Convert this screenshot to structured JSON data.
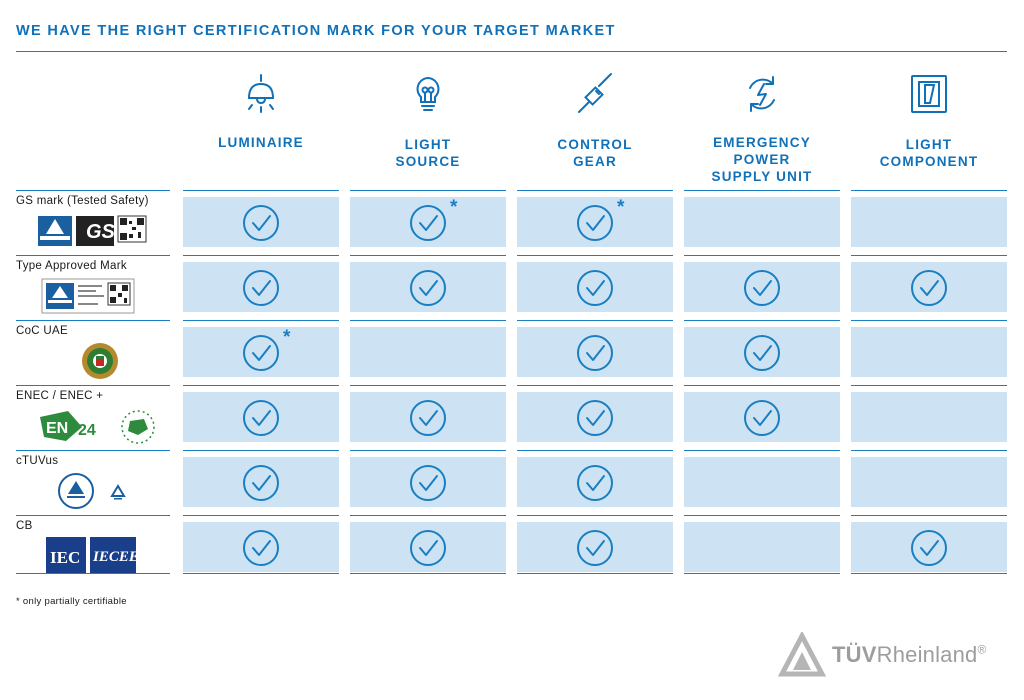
{
  "title": "WE HAVE THE RIGHT CERTIFICATION MARK FOR YOUR TARGET MARKET",
  "columns": [
    {
      "label": "LUMINAIRE",
      "icon": "ceiling-lamp-icon"
    },
    {
      "label": "LIGHT SOURCE",
      "icon": "light-bulb-icon"
    },
    {
      "label": "CONTROL GEAR",
      "icon": "cable-connector-icon"
    },
    {
      "label": "EMERGENCY POWER SUPPLY UNIT",
      "icon": "power-cycle-icon"
    },
    {
      "label": "LIGHT COMPONENT",
      "icon": "switch-component-icon"
    }
  ],
  "rows": [
    {
      "name": "GS mark (Tested Safety)",
      "logo": "gs-mark-logo",
      "cells": [
        {
          "check": true,
          "star": false
        },
        {
          "check": true,
          "star": true
        },
        {
          "check": true,
          "star": true
        },
        {
          "check": false,
          "star": false
        },
        {
          "check": false,
          "star": false
        }
      ]
    },
    {
      "name": "Type Approved Mark",
      "logo": "type-approved-mark-logo",
      "cells": [
        {
          "check": true,
          "star": false
        },
        {
          "check": true,
          "star": false
        },
        {
          "check": true,
          "star": false
        },
        {
          "check": true,
          "star": false
        },
        {
          "check": true,
          "star": false
        }
      ]
    },
    {
      "name": "CoC UAE",
      "logo": "uae-emblem-logo",
      "cells": [
        {
          "check": true,
          "star": true
        },
        {
          "check": false,
          "star": false
        },
        {
          "check": true,
          "star": false
        },
        {
          "check": true,
          "star": false
        },
        {
          "check": false,
          "star": false
        }
      ]
    },
    {
      "name": "ENEC / ENEC +",
      "logo": "enec-logo",
      "cells": [
        {
          "check": true,
          "star": false
        },
        {
          "check": true,
          "star": false
        },
        {
          "check": true,
          "star": false
        },
        {
          "check": true,
          "star": false
        },
        {
          "check": false,
          "star": false
        }
      ]
    },
    {
      "name": "cTUVus",
      "logo": "ctuvus-logo",
      "cells": [
        {
          "check": true,
          "star": false
        },
        {
          "check": true,
          "star": false
        },
        {
          "check": true,
          "star": false
        },
        {
          "check": false,
          "star": false
        },
        {
          "check": false,
          "star": false
        }
      ]
    },
    {
      "name": "CB",
      "logo": "iec-iecee-logo",
      "cells": [
        {
          "check": true,
          "star": false
        },
        {
          "check": true,
          "star": false
        },
        {
          "check": true,
          "star": false
        },
        {
          "check": false,
          "star": false
        },
        {
          "check": true,
          "star": false
        }
      ]
    }
  ],
  "star_symbol": "*",
  "footnote": "* only partially certifiable",
  "brand": {
    "prefix": "TÜV",
    "suffix": "Rheinland",
    "mark": "®"
  },
  "colors": {
    "accent": "#1071b9",
    "cell": "#cde3f3",
    "check": "#1a7fc2",
    "brand_grey": "#9d9d9d"
  }
}
